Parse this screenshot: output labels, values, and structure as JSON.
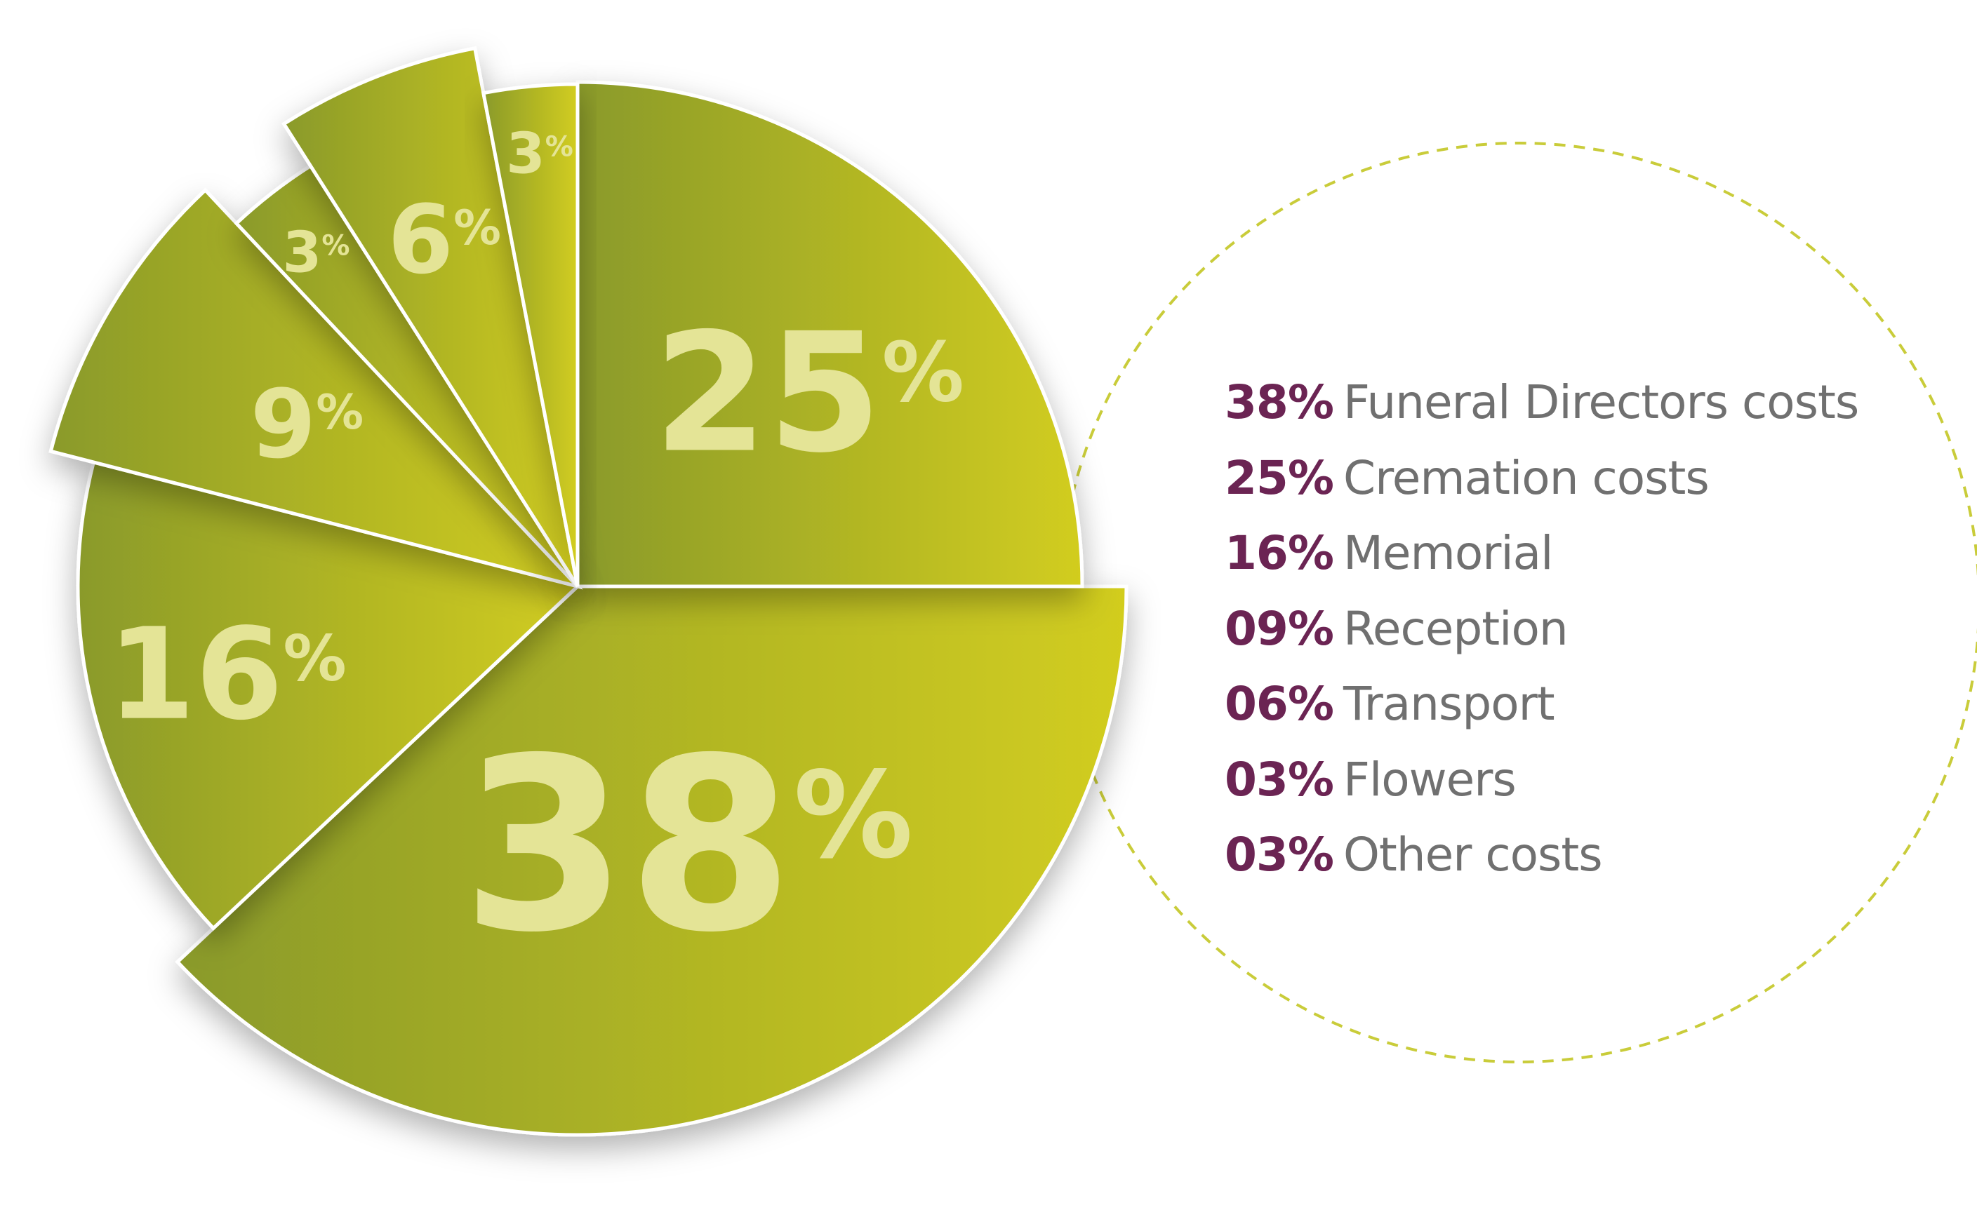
{
  "chart_data": {
    "type": "pie",
    "title": "",
    "slices": [
      {
        "label": "Cremation costs",
        "value": 25,
        "display": "25",
        "legend_pct": "25%"
      },
      {
        "label": "Funeral Directors costs",
        "value": 38,
        "display": "38",
        "legend_pct": "38%"
      },
      {
        "label": "Memorial",
        "value": 16,
        "display": "16",
        "legend_pct": "16%"
      },
      {
        "label": "Reception",
        "value": 9,
        "display": "9",
        "legend_pct": "09%"
      },
      {
        "label": "Flowers",
        "value": 3,
        "display": "3",
        "legend_pct": "03%"
      },
      {
        "label": "Transport",
        "value": 6,
        "display": "6",
        "legend_pct": "06%"
      },
      {
        "label": "Other costs",
        "value": 3,
        "display": "3",
        "legend_pct": "03%"
      }
    ],
    "percent_sign": "%",
    "legend": [
      {
        "pct": "38%",
        "label": "Funeral Directors costs"
      },
      {
        "pct": "25%",
        "label": "Cremation costs"
      },
      {
        "pct": "16%",
        "label": "Memorial"
      },
      {
        "pct": "09%",
        "label": "Reception"
      },
      {
        "pct": "06%",
        "label": "Transport"
      },
      {
        "pct": "03%",
        "label": "Flowers"
      },
      {
        "pct": "03%",
        "label": "Other costs"
      }
    ],
    "legend_placement": "right",
    "colors": {
      "gradient_dark": "#8a9a2a",
      "gradient_light": "#d2cd1f",
      "label": "#e4e496",
      "legend_pct": "#6b2453",
      "legend_text": "#707070",
      "dashed_circle": "#c9cc3a"
    }
  }
}
